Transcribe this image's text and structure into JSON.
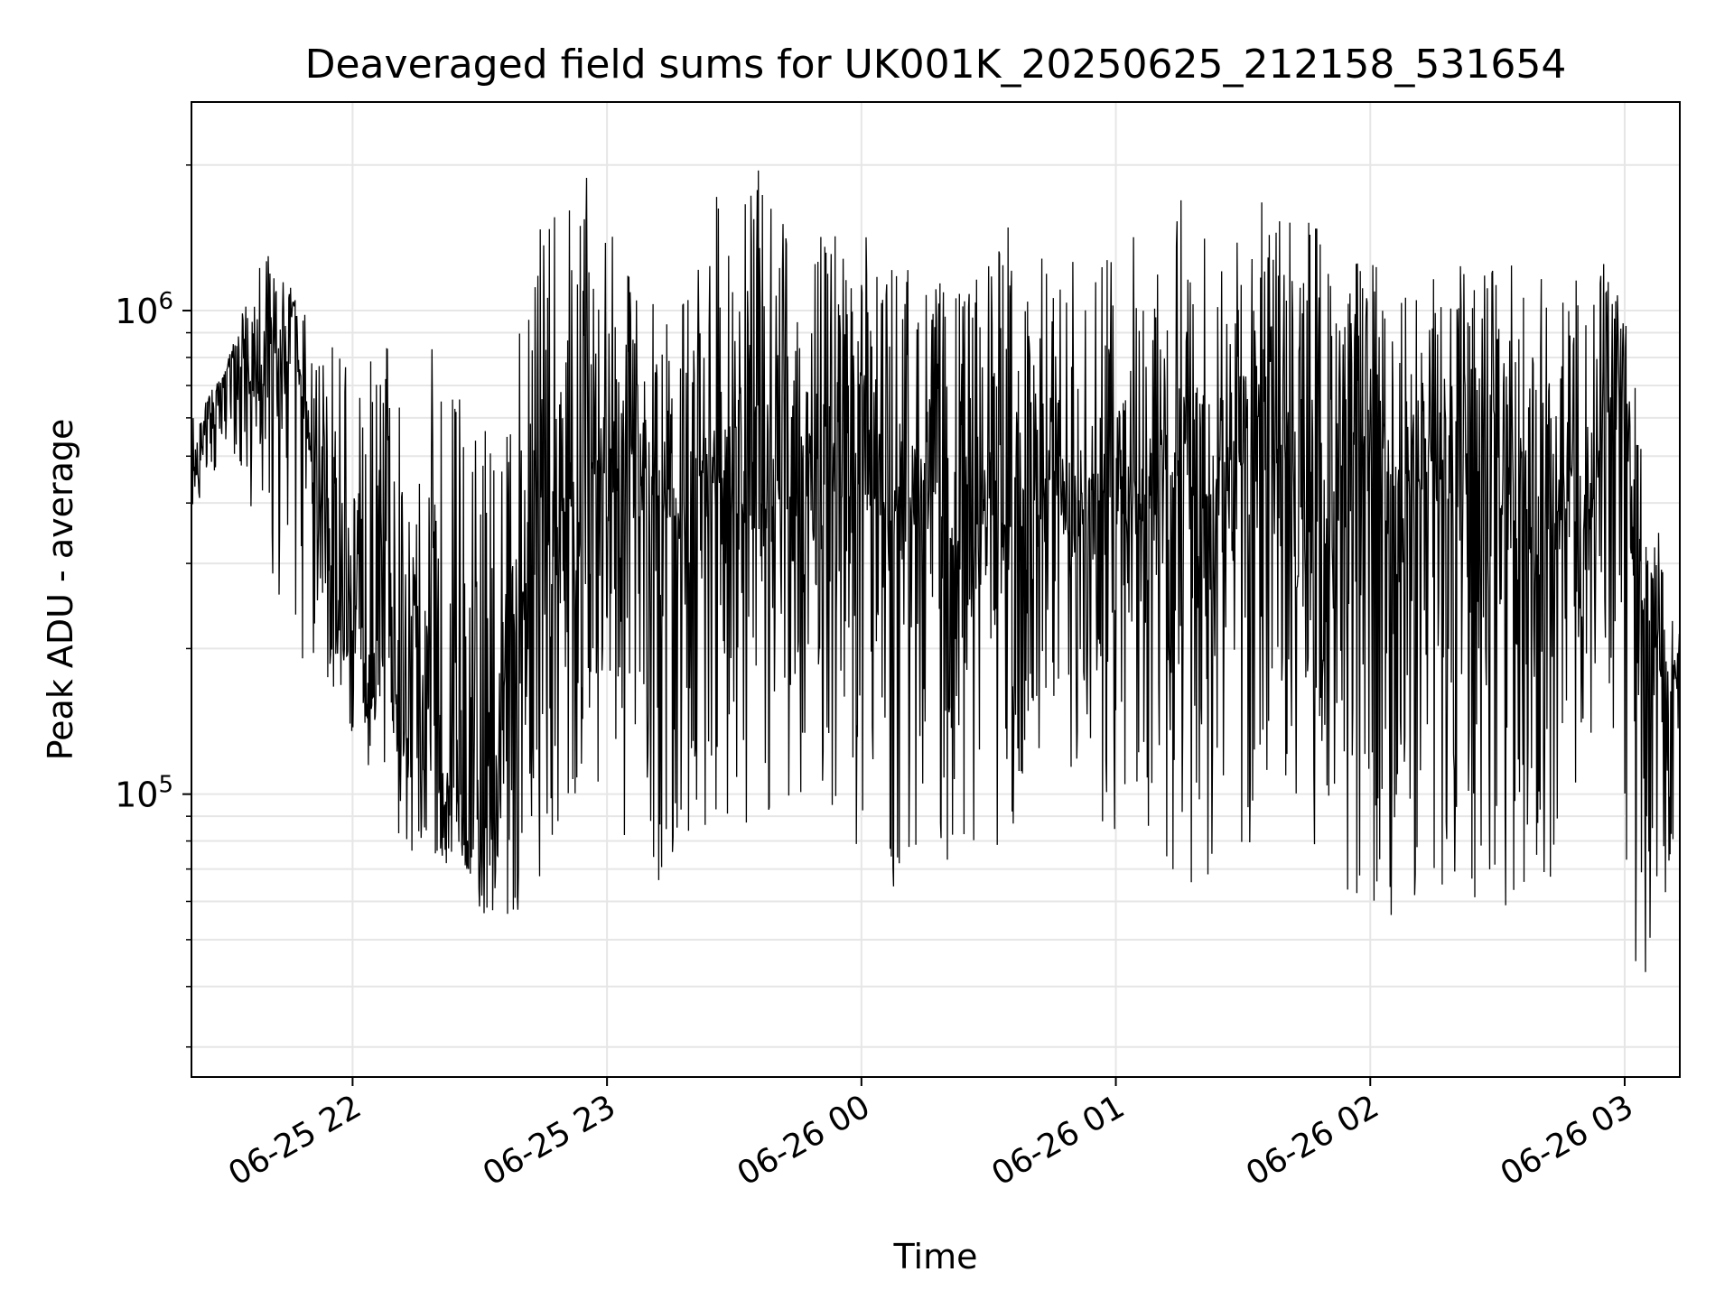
{
  "chart_data": {
    "type": "line",
    "title": "Deaveraged field sums for UK001K_20250625_212158_531654",
    "xlabel": "Time",
    "ylabel": "Peak ADU - average",
    "yscale": "log",
    "ylim": [
      26000,
      2700000
    ],
    "xlim": [
      "2025-06-25 21:22",
      "2025-06-26 03:13"
    ],
    "grid": true,
    "line_color": "#000000",
    "x_ticks": [
      {
        "time": "2025-06-25 22:00",
        "label": "06-25 22"
      },
      {
        "time": "2025-06-25 23:00",
        "label": "06-25 23"
      },
      {
        "time": "2025-06-26 00:00",
        "label": "06-26 00"
      },
      {
        "time": "2025-06-26 01:00",
        "label": "06-26 01"
      },
      {
        "time": "2025-06-26 02:00",
        "label": "06-26 02"
      },
      {
        "time": "2025-06-26 03:00",
        "label": "06-26 03"
      }
    ],
    "y_ticks": [
      {
        "value": 100000,
        "base": "10",
        "exp": "5"
      },
      {
        "value": 1000000,
        "base": "10",
        "exp": "6"
      }
    ],
    "series": [
      {
        "x": [
          "2025-06-25 21:22",
          "2025-06-25 21:26",
          "2025-06-25 21:30",
          "2025-06-25 21:34",
          "2025-06-25 21:37",
          "2025-06-25 21:40",
          "2025-06-25 21:43",
          "2025-06-25 21:46",
          "2025-06-25 21:49",
          "2025-06-25 21:52",
          "2025-06-25 21:55",
          "2025-06-25 21:58",
          "2025-06-25 22:01",
          "2025-06-25 22:04",
          "2025-06-25 22:08",
          "2025-06-25 22:12",
          "2025-06-25 22:15",
          "2025-06-25 22:18",
          "2025-06-25 22:21",
          "2025-06-25 22:24",
          "2025-06-25 22:27",
          "2025-06-25 22:30",
          "2025-06-25 22:33",
          "2025-06-25 22:36",
          "2025-06-25 22:40",
          "2025-06-25 22:44",
          "2025-06-25 22:48",
          "2025-06-25 22:52",
          "2025-06-25 22:56",
          "2025-06-25 23:00",
          "2025-06-25 23:05",
          "2025-06-25 23:10",
          "2025-06-25 23:15",
          "2025-06-25 23:20",
          "2025-06-25 23:25",
          "2025-06-25 23:30",
          "2025-06-25 23:35",
          "2025-06-25 23:40",
          "2025-06-25 23:45",
          "2025-06-25 23:50",
          "2025-06-25 23:55",
          "2025-06-26 00:00",
          "2025-06-26 00:05",
          "2025-06-26 00:10",
          "2025-06-26 00:15",
          "2025-06-26 00:20",
          "2025-06-26 00:25",
          "2025-06-26 00:30",
          "2025-06-26 00:35",
          "2025-06-26 00:40",
          "2025-06-26 00:45",
          "2025-06-26 00:50",
          "2025-06-26 00:55",
          "2025-06-26 01:00",
          "2025-06-26 01:05",
          "2025-06-26 01:10",
          "2025-06-26 01:15",
          "2025-06-26 01:20",
          "2025-06-26 01:25",
          "2025-06-26 01:30",
          "2025-06-26 01:35",
          "2025-06-26 01:40",
          "2025-06-26 01:45",
          "2025-06-26 01:50",
          "2025-06-26 01:55",
          "2025-06-26 02:00",
          "2025-06-26 02:05",
          "2025-06-26 02:10",
          "2025-06-26 02:15",
          "2025-06-26 02:20",
          "2025-06-26 02:25",
          "2025-06-26 02:30",
          "2025-06-26 02:35",
          "2025-06-26 02:40",
          "2025-06-26 02:45",
          "2025-06-26 02:50",
          "2025-06-26 02:54",
          "2025-06-26 02:58",
          "2025-06-26 03:00",
          "2025-06-26 03:03",
          "2025-06-26 03:06",
          "2025-06-26 03:09",
          "2025-06-26 03:13"
        ],
        "y": [
          400000,
          600000,
          750000,
          800000,
          650000,
          900000,
          700000,
          1050000,
          550000,
          450000,
          350000,
          200000,
          300000,
          180000,
          250000,
          120000,
          220000,
          150000,
          90000,
          110000,
          70000,
          90000,
          85000,
          180000,
          250000,
          300000,
          350000,
          450000,
          500000,
          450000,
          550000,
          400000,
          380000,
          420000,
          500000,
          450000,
          350000,
          400000,
          550000,
          300000,
          650000,
          700000,
          350000,
          400000,
          450000,
          350000,
          300000,
          400000,
          350000,
          380000,
          450000,
          300000,
          450000,
          400000,
          350000,
          420000,
          500000,
          380000,
          450000,
          550000,
          650000,
          500000,
          400000,
          350000,
          550000,
          600000,
          450000,
          400000,
          500000,
          350000,
          450000,
          500000,
          400000,
          300000,
          400000,
          350000,
          450000,
          700000,
          600000,
          200000,
          300000,
          150000,
          180000
        ]
      }
    ],
    "envelope": {
      "x": [
        "2025-06-25 21:22",
        "2025-06-25 21:30",
        "2025-06-25 21:38",
        "2025-06-25 21:46",
        "2025-06-25 21:55",
        "2025-06-25 22:05",
        "2025-06-25 22:15",
        "2025-06-25 22:25",
        "2025-06-25 22:35",
        "2025-06-25 22:45",
        "2025-06-25 22:55",
        "2025-06-25 23:05",
        "2025-06-25 23:15",
        "2025-06-25 23:25",
        "2025-06-25 23:35",
        "2025-06-25 23:45",
        "2025-06-25 23:55",
        "2025-06-26 00:05",
        "2025-06-26 00:15",
        "2025-06-26 00:25",
        "2025-06-26 00:35",
        "2025-06-26 00:45",
        "2025-06-26 00:55",
        "2025-06-26 01:05",
        "2025-06-26 01:15",
        "2025-06-26 01:25",
        "2025-06-26 01:35",
        "2025-06-26 01:45",
        "2025-06-26 01:55",
        "2025-06-26 02:05",
        "2025-06-26 02:15",
        "2025-06-26 02:25",
        "2025-06-26 02:35",
        "2025-06-26 02:45",
        "2025-06-26 02:55",
        "2025-06-26 03:00",
        "2025-06-26 03:05",
        "2025-06-26 03:13"
      ],
      "high": [
        600000,
        750000,
        1400000,
        1100000,
        900000,
        800000,
        1000000,
        700000,
        600000,
        1600000,
        1900000,
        1200000,
        1000000,
        1700000,
        2000000,
        1500000,
        1500000,
        1400000,
        1200000,
        1100000,
        1700000,
        1200000,
        1400000,
        1500000,
        1900000,
        1300000,
        1700000,
        1700000,
        1300000,
        1300000,
        1300000,
        1200000,
        1300000,
        1100000,
        1300000,
        1100000,
        450000,
        240000
      ],
      "low": [
        380000,
        500000,
        350000,
        200000,
        150000,
        110000,
        65000,
        75000,
        45000,
        70000,
        100000,
        80000,
        60000,
        90000,
        80000,
        100000,
        90000,
        55000,
        75000,
        70000,
        80000,
        90000,
        80000,
        85000,
        60000,
        70000,
        65000,
        80000,
        60000,
        55000,
        60000,
        55000,
        60000,
        70000,
        150000,
        30000,
        40000,
        75000
      ]
    }
  }
}
